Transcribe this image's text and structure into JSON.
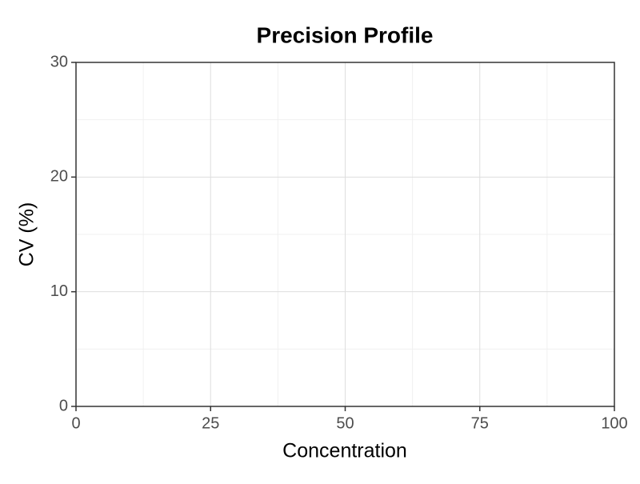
{
  "chart_data": {
    "type": "scatter",
    "title": "Precision Profile",
    "x_label": "Concentration",
    "y_label": "CV (%)",
    "x": [],
    "values": [],
    "xlim": [
      0,
      100
    ],
    "xticks": [
      0,
      25,
      50,
      75,
      100
    ],
    "ylim": [
      0,
      30
    ],
    "yticks": [
      0,
      10,
      20,
      30
    ],
    "grid": true
  }
}
